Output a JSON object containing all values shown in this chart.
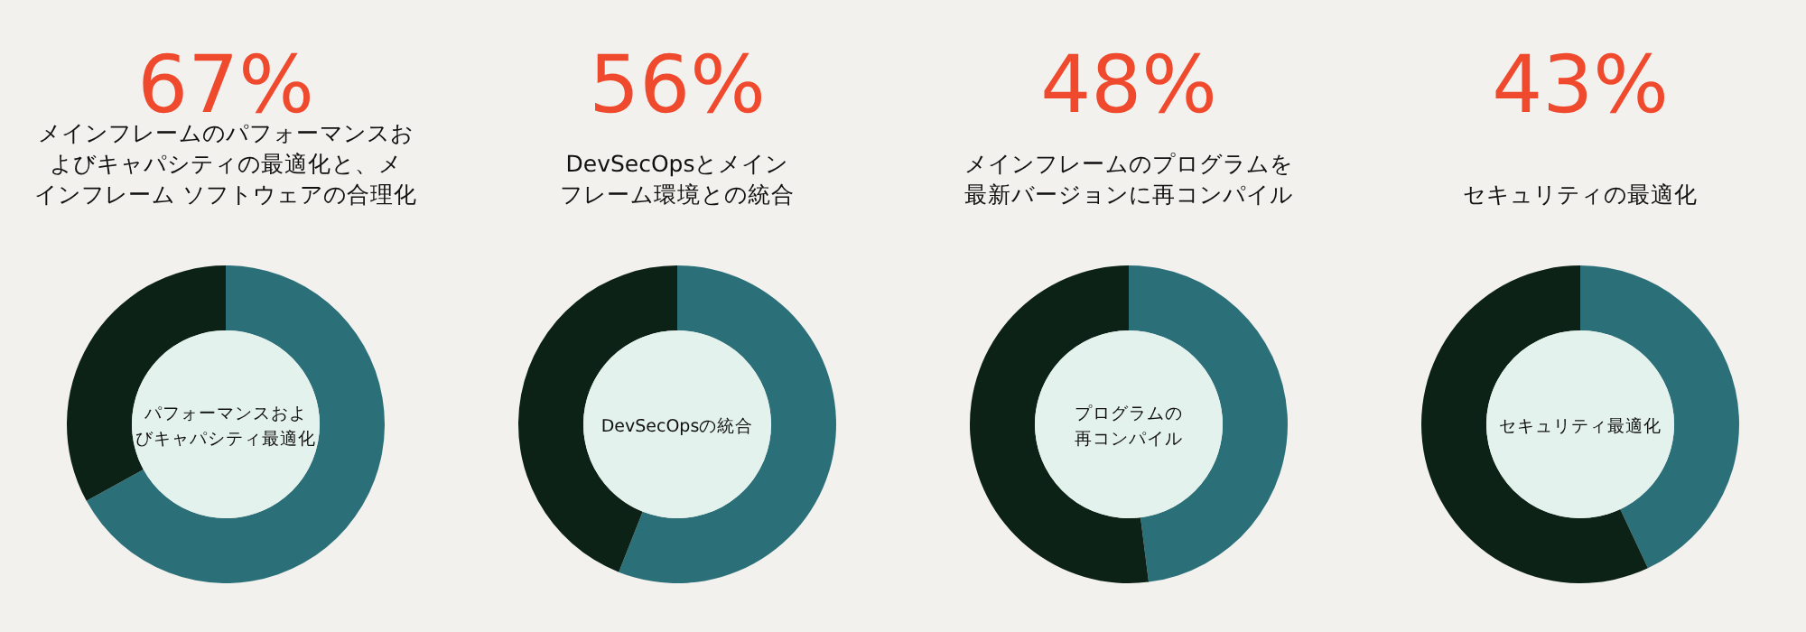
{
  "chart_data": [
    {
      "type": "donut",
      "title": "67%",
      "subtitle": "メインフレームのパフォーマンスおよびキャパシティの最適化と、メインフレーム ソフトウェアの合理化",
      "categories": [
        null,
        null
      ],
      "values": [
        67,
        33
      ],
      "colors": [
        "#2b6f78",
        "#0c2216"
      ],
      "annotations": [
        "パフォーマンスおよびキャパシティ最適化"
      ]
    },
    {
      "type": "donut",
      "title": "56%",
      "subtitle": "DevSecOpsとメインフレーム環境との統合",
      "categories": [
        null,
        null
      ],
      "values": [
        56,
        44
      ],
      "colors": [
        "#2b6f78",
        "#0c2216"
      ],
      "annotations": [
        "DevSecOpsの統合"
      ]
    },
    {
      "type": "donut",
      "title": "48%",
      "subtitle": "メインフレームのプログラムを最新バージョンに再コンパイル",
      "categories": [
        null,
        null
      ],
      "values": [
        48,
        52
      ],
      "colors": [
        "#2b6f78",
        "#0c2216"
      ],
      "annotations": [
        "プログラムの再コンパイル"
      ]
    },
    {
      "type": "donut",
      "title": "43%",
      "subtitle": "セキュリティの最適化",
      "categories": [
        null,
        null
      ],
      "values": [
        43,
        57
      ],
      "colors": [
        "#2b6f78",
        "#0c2216"
      ],
      "annotations": [
        "セキュリティ最適化"
      ]
    }
  ]
}
